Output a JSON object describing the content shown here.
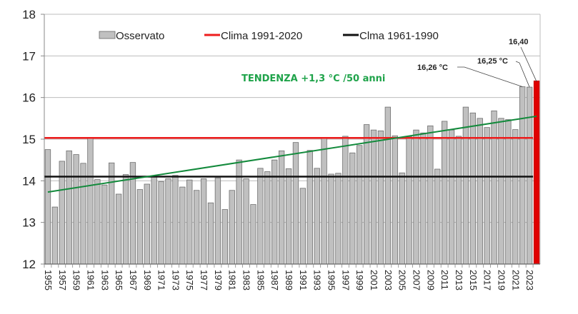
{
  "chart_data": {
    "type": "bar",
    "title": "",
    "xlabel": "",
    "ylabel": "",
    "ylim": [
      12,
      18
    ],
    "yticks": [
      "12",
      "13",
      "14",
      "15",
      "16",
      "17",
      "18"
    ],
    "grid": true,
    "legend_position": "top",
    "x": [
      1955,
      1956,
      1957,
      1958,
      1959,
      1960,
      1961,
      1962,
      1963,
      1964,
      1965,
      1966,
      1967,
      1968,
      1969,
      1970,
      1971,
      1972,
      1973,
      1974,
      1975,
      1976,
      1977,
      1978,
      1979,
      1980,
      1981,
      1982,
      1983,
      1984,
      1985,
      1986,
      1987,
      1988,
      1989,
      1990,
      1991,
      1992,
      1993,
      1994,
      1995,
      1996,
      1997,
      1998,
      1999,
      2000,
      2001,
      2002,
      2003,
      2004,
      2005,
      2006,
      2007,
      2008,
      2009,
      2010,
      2011,
      2012,
      2013,
      2014,
      2015,
      2016,
      2017,
      2018,
      2019,
      2020,
      2021,
      2022,
      2023,
      2024
    ],
    "xtick_labels": [
      "1955",
      "1957",
      "1959",
      "1961",
      "1963",
      "1965",
      "1967",
      "1969",
      "1971",
      "1973",
      "1975",
      "1977",
      "1979",
      "1981",
      "1983",
      "1985",
      "1987",
      "1989",
      "1991",
      "1993",
      "1995",
      "1997",
      "1999",
      "2001",
      "2003",
      "2005",
      "2007",
      "2009",
      "2011",
      "2013",
      "2015",
      "2017",
      "2019",
      "2021",
      "2023"
    ],
    "series": [
      {
        "name": "Osservato",
        "kind": "bar",
        "color": "#c0c0c0",
        "highlight_color": "#e00000",
        "highlight_year": 2024,
        "values": [
          14.75,
          13.37,
          14.47,
          14.72,
          14.63,
          14.42,
          15.02,
          14.03,
          13.9,
          14.43,
          13.68,
          14.15,
          14.44,
          13.79,
          13.92,
          14.1,
          13.98,
          14.05,
          14.13,
          13.85,
          14.02,
          13.77,
          14.05,
          13.47,
          14.07,
          13.31,
          13.77,
          14.5,
          14.05,
          13.43,
          14.3,
          14.22,
          14.5,
          14.72,
          14.29,
          14.92,
          13.82,
          14.73,
          14.3,
          15.02,
          14.16,
          14.18,
          15.07,
          14.67,
          14.85,
          15.35,
          15.22,
          15.2,
          15.77,
          15.08,
          14.19,
          15.06,
          15.22,
          15.15,
          15.32,
          14.28,
          15.43,
          15.22,
          15.07,
          15.77,
          15.63,
          15.5,
          15.28,
          15.68,
          15.5,
          15.47,
          15.23,
          16.26,
          16.25,
          16.4
        ]
      },
      {
        "name": "Clima 1991-2020",
        "kind": "hline",
        "color": "#ee1c1c",
        "value": 15.03,
        "from_year": 1955,
        "to_year": 2024
      },
      {
        "name": "Clma 1961-1990",
        "kind": "hline",
        "color": "#111111",
        "value": 14.1,
        "from_year": 1955,
        "to_year": 2024
      },
      {
        "name": "Tendenza",
        "kind": "trend",
        "color": "#138a3c",
        "start": {
          "year": 1955,
          "value": 13.73
        },
        "end": {
          "year": 2024,
          "value": 15.55
        }
      }
    ],
    "legend": [
      {
        "label": "Osservato",
        "symbol": "box",
        "color": "#c0c0c0"
      },
      {
        "label": "Clima 1991-2020",
        "symbol": "line",
        "color": "#ee1c1c"
      },
      {
        "label": "Clma 1961-1990",
        "symbol": "line",
        "color": "#111111"
      }
    ],
    "annotations": {
      "trend_label": "TENDENZA +1,3 °C /50 anni",
      "callouts": [
        {
          "text": "16,26 °C",
          "year": 2022
        },
        {
          "text": "16,25 °C",
          "year": 2023
        },
        {
          "text": "16,40",
          "year": 2024
        }
      ]
    }
  }
}
